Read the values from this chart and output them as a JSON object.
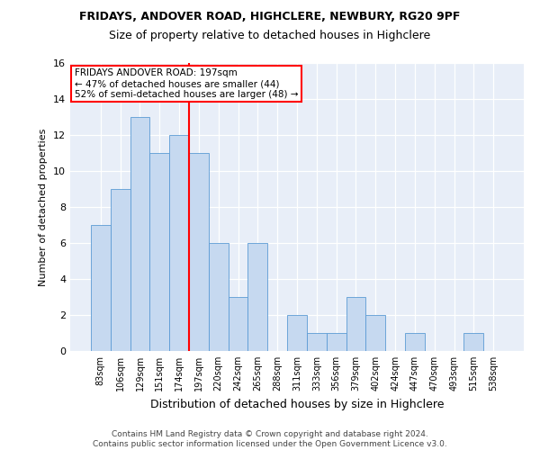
{
  "title1": "FRIDAYS, ANDOVER ROAD, HIGHCLERE, NEWBURY, RG20 9PF",
  "title2": "Size of property relative to detached houses in Highclere",
  "xlabel": "Distribution of detached houses by size in Highclere",
  "ylabel": "Number of detached properties",
  "footer1": "Contains HM Land Registry data © Crown copyright and database right 2024.",
  "footer2": "Contains public sector information licensed under the Open Government Licence v3.0.",
  "bin_labels": [
    "83sqm",
    "106sqm",
    "129sqm",
    "151sqm",
    "174sqm",
    "197sqm",
    "220sqm",
    "242sqm",
    "265sqm",
    "288sqm",
    "311sqm",
    "333sqm",
    "356sqm",
    "379sqm",
    "402sqm",
    "424sqm",
    "447sqm",
    "470sqm",
    "493sqm",
    "515sqm",
    "538sqm"
  ],
  "bar_heights": [
    7,
    9,
    13,
    11,
    12,
    11,
    6,
    3,
    6,
    0,
    2,
    1,
    1,
    3,
    2,
    0,
    1,
    0,
    0,
    1,
    0
  ],
  "bar_color": "#c6d9f0",
  "bar_edge_color": "#5b9bd5",
  "vline_index": 5,
  "annotation_line1": "FRIDAYS ANDOVER ROAD: 197sqm",
  "annotation_line2": "← 47% of detached houses are smaller (44)",
  "annotation_line3": "52% of semi-detached houses are larger (48) →",
  "annotation_box_color": "white",
  "annotation_box_edge": "red",
  "vline_color": "red",
  "background_color": "#e8eef8",
  "ylim": [
    0,
    16
  ],
  "yticks": [
    0,
    2,
    4,
    6,
    8,
    10,
    12,
    14,
    16
  ]
}
